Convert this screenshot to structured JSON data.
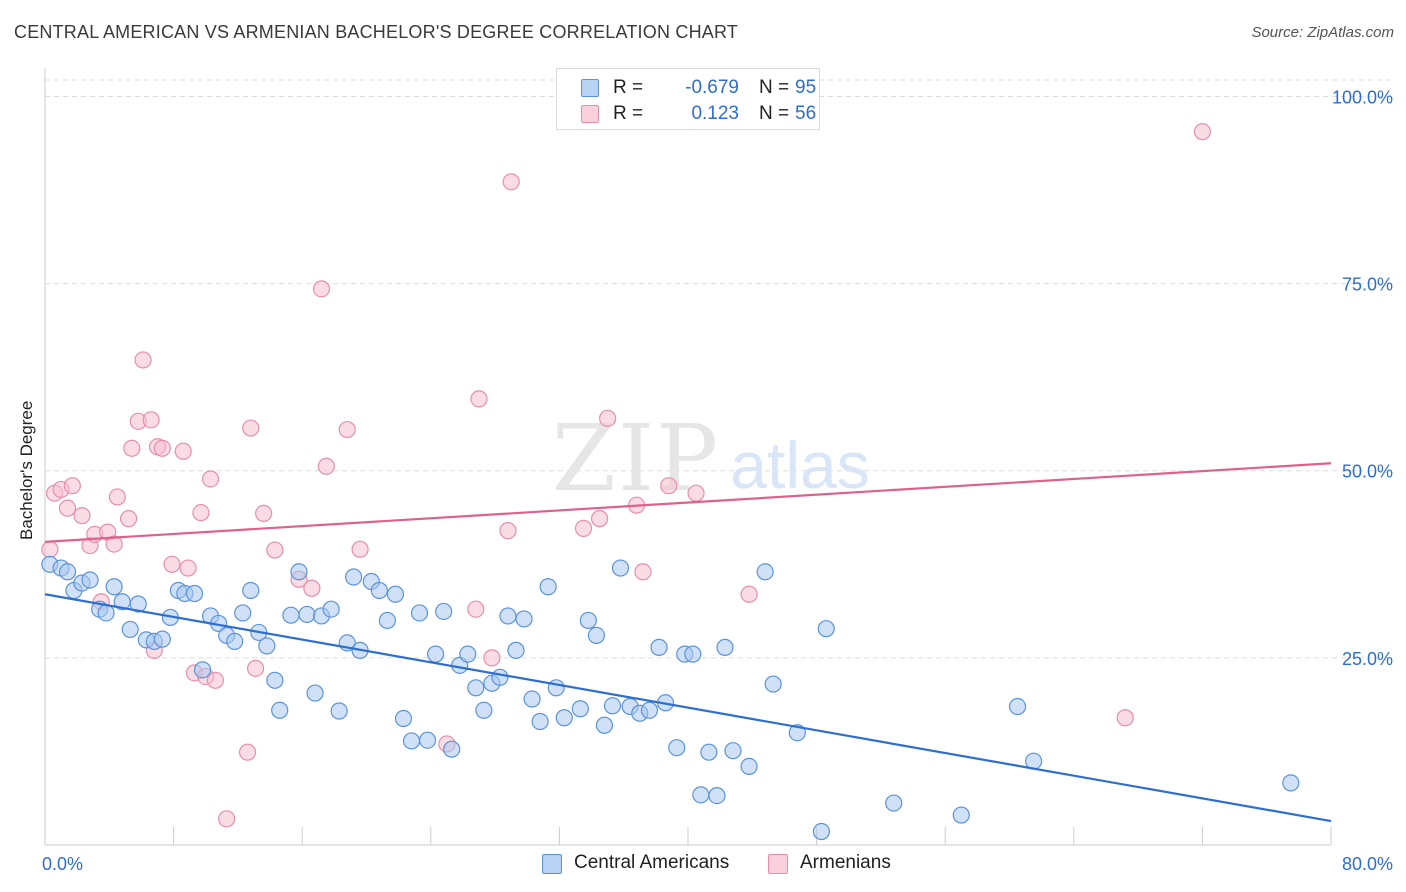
{
  "header": {
    "title": "CENTRAL AMERICAN VS ARMENIAN BACHELOR'S DEGREE CORRELATION CHART",
    "source": "Source: ZipAtlas.com"
  },
  "watermark": {
    "zip": "ZIP",
    "atlas": "atlas"
  },
  "legend_top": {
    "rows": [
      {
        "r_label": "R =",
        "r_value": "-0.679",
        "n_label": "N =",
        "n_value": "95"
      },
      {
        "r_label": "R =",
        "r_value": "0.123",
        "n_label": "N =",
        "n_value": "56"
      }
    ]
  },
  "legend_bottom": {
    "items": [
      "Central Americans",
      "Armenians"
    ]
  },
  "colors": {
    "blue_fill": "#a9c8f0",
    "blue_stroke": "#5b93dc",
    "blue_line": "#2c6fd1",
    "pink_fill": "#f6bfd0",
    "pink_stroke": "#e88eaa",
    "pink_line": "#e0608c",
    "tick_label": "#2e6dd0",
    "grid": "#dddddd"
  },
  "chart_data": {
    "type": "scatter",
    "title": "CENTRAL AMERICAN VS ARMENIAN BACHELOR'S DEGREE CORRELATION CHART",
    "xlabel": "",
    "ylabel": "Bachelor's Degree",
    "xlim": [
      0,
      80
    ],
    "ylim": [
      0,
      100
    ],
    "x_tick_labels": [
      "0.0%",
      "80.0%"
    ],
    "y_ticks": [
      25,
      50,
      75,
      100
    ],
    "y_tick_labels": [
      "25.0%",
      "50.0%",
      "75.0%",
      "100.0%"
    ],
    "grid": "horizontal dashed",
    "legend_position": "bottom",
    "series": [
      {
        "name": "Central Americans",
        "r": -0.679,
        "n": 95,
        "trend": {
          "x": [
            0,
            80
          ],
          "y": [
            33.5,
            3.2
          ]
        },
        "points": [
          [
            0.3,
            37.5
          ],
          [
            1.0,
            37.0
          ],
          [
            1.4,
            36.5
          ],
          [
            1.8,
            34.0
          ],
          [
            2.3,
            35.0
          ],
          [
            2.8,
            35.4
          ],
          [
            3.4,
            31.5
          ],
          [
            3.8,
            31.0
          ],
          [
            4.3,
            34.5
          ],
          [
            4.8,
            32.5
          ],
          [
            5.3,
            28.8
          ],
          [
            5.8,
            32.2
          ],
          [
            6.3,
            27.4
          ],
          [
            6.8,
            27.2
          ],
          [
            7.3,
            27.5
          ],
          [
            7.8,
            30.4
          ],
          [
            8.3,
            34.0
          ],
          [
            8.7,
            33.6
          ],
          [
            9.3,
            33.6
          ],
          [
            9.8,
            23.4
          ],
          [
            10.3,
            30.6
          ],
          [
            10.8,
            29.6
          ],
          [
            11.3,
            28.0
          ],
          [
            11.8,
            27.2
          ],
          [
            12.3,
            31.0
          ],
          [
            12.8,
            34.0
          ],
          [
            13.3,
            28.4
          ],
          [
            13.8,
            26.6
          ],
          [
            14.3,
            22.0
          ],
          [
            14.6,
            18.0
          ],
          [
            15.3,
            30.7
          ],
          [
            15.8,
            36.5
          ],
          [
            16.3,
            30.8
          ],
          [
            16.8,
            20.3
          ],
          [
            17.2,
            30.6
          ],
          [
            17.8,
            31.5
          ],
          [
            18.3,
            17.9
          ],
          [
            18.8,
            27.0
          ],
          [
            19.2,
            35.8
          ],
          [
            19.6,
            26.0
          ],
          [
            20.3,
            35.2
          ],
          [
            20.8,
            34.0
          ],
          [
            21.3,
            30.0
          ],
          [
            21.8,
            33.5
          ],
          [
            22.3,
            16.9
          ],
          [
            22.8,
            13.9
          ],
          [
            23.3,
            31.0
          ],
          [
            23.8,
            14.0
          ],
          [
            24.3,
            25.5
          ],
          [
            24.8,
            31.2
          ],
          [
            25.3,
            12.8
          ],
          [
            25.8,
            24.0
          ],
          [
            26.3,
            25.5
          ],
          [
            26.8,
            21.0
          ],
          [
            27.3,
            18.0
          ],
          [
            27.8,
            21.6
          ],
          [
            28.3,
            22.4
          ],
          [
            28.8,
            30.6
          ],
          [
            29.3,
            26.0
          ],
          [
            29.8,
            30.2
          ],
          [
            30.3,
            19.5
          ],
          [
            30.8,
            16.5
          ],
          [
            31.3,
            34.5
          ],
          [
            31.8,
            21.0
          ],
          [
            32.3,
            17.0
          ],
          [
            33.3,
            18.2
          ],
          [
            33.8,
            30.0
          ],
          [
            34.3,
            28.0
          ],
          [
            34.8,
            16.0
          ],
          [
            35.3,
            18.6
          ],
          [
            35.8,
            37.0
          ],
          [
            36.4,
            18.5
          ],
          [
            37.0,
            17.6
          ],
          [
            37.6,
            18.0
          ],
          [
            38.2,
            26.4
          ],
          [
            38.6,
            19.0
          ],
          [
            39.3,
            13.0
          ],
          [
            39.8,
            25.5
          ],
          [
            40.3,
            25.5
          ],
          [
            40.8,
            6.7
          ],
          [
            41.3,
            12.4
          ],
          [
            41.8,
            6.6
          ],
          [
            42.3,
            26.4
          ],
          [
            42.8,
            12.6
          ],
          [
            43.8,
            10.5
          ],
          [
            44.8,
            36.5
          ],
          [
            45.3,
            21.5
          ],
          [
            46.8,
            15.0
          ],
          [
            48.3,
            1.8
          ],
          [
            48.6,
            28.9
          ],
          [
            52.8,
            5.6
          ],
          [
            57.0,
            4.0
          ],
          [
            60.5,
            18.5
          ],
          [
            61.5,
            11.2
          ],
          [
            77.5,
            8.3
          ]
        ]
      },
      {
        "name": "Armenians",
        "r": 0.123,
        "n": 56,
        "trend": {
          "x": [
            0,
            80
          ],
          "y": [
            40.5,
            51.0
          ]
        },
        "points": [
          [
            0.3,
            39.5
          ],
          [
            0.6,
            47.0
          ],
          [
            1.0,
            47.5
          ],
          [
            1.4,
            45.0
          ],
          [
            1.7,
            48.0
          ],
          [
            2.3,
            44.0
          ],
          [
            2.8,
            40.0
          ],
          [
            3.1,
            41.5
          ],
          [
            3.5,
            32.5
          ],
          [
            3.9,
            41.8
          ],
          [
            4.3,
            40.2
          ],
          [
            4.5,
            46.5
          ],
          [
            5.2,
            43.6
          ],
          [
            5.4,
            53.0
          ],
          [
            5.8,
            56.6
          ],
          [
            6.1,
            64.8
          ],
          [
            6.6,
            56.8
          ],
          [
            6.8,
            26.0
          ],
          [
            7.0,
            53.2
          ],
          [
            7.3,
            53.0
          ],
          [
            7.9,
            37.5
          ],
          [
            8.6,
            52.6
          ],
          [
            8.9,
            37.0
          ],
          [
            9.3,
            23.0
          ],
          [
            9.7,
            44.4
          ],
          [
            10.0,
            22.5
          ],
          [
            10.3,
            48.9
          ],
          [
            10.6,
            22.0
          ],
          [
            11.3,
            3.5
          ],
          [
            12.6,
            12.4
          ],
          [
            12.8,
            55.7
          ],
          [
            13.1,
            23.6
          ],
          [
            13.6,
            44.3
          ],
          [
            14.3,
            39.4
          ],
          [
            15.8,
            35.5
          ],
          [
            16.6,
            34.3
          ],
          [
            17.2,
            74.3
          ],
          [
            17.5,
            50.6
          ],
          [
            18.8,
            55.5
          ],
          [
            19.6,
            39.5
          ],
          [
            25.0,
            13.5
          ],
          [
            26.8,
            31.5
          ],
          [
            27.0,
            59.6
          ],
          [
            27.8,
            25.0
          ],
          [
            28.8,
            42.0
          ],
          [
            29.0,
            88.6
          ],
          [
            33.5,
            42.3
          ],
          [
            34.5,
            43.6
          ],
          [
            35.0,
            57.0
          ],
          [
            36.8,
            45.4
          ],
          [
            37.2,
            36.5
          ],
          [
            38.8,
            48.0
          ],
          [
            40.5,
            47.0
          ],
          [
            43.8,
            33.5
          ],
          [
            67.2,
            17.0
          ],
          [
            72.0,
            95.3
          ]
        ]
      }
    ]
  }
}
